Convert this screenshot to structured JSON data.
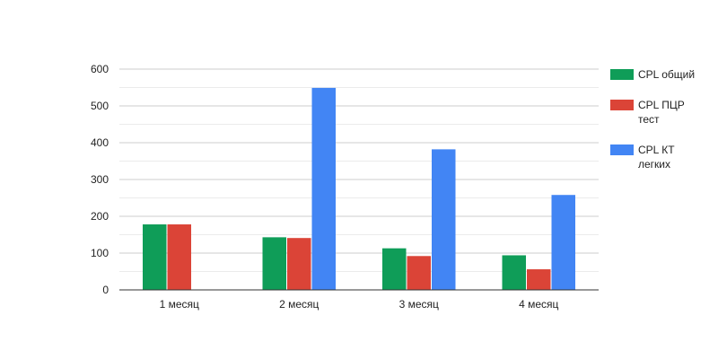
{
  "chart_data": {
    "type": "bar",
    "title": "",
    "xlabel": "",
    "ylabel": "",
    "categories": [
      "1 месяц",
      "2 месяц",
      "3 месяц",
      "4 месяц"
    ],
    "yticks": [
      "0",
      "100",
      "200",
      "300",
      "400",
      "500",
      "600"
    ],
    "ylim": [
      0,
      600
    ],
    "grid": true,
    "legend_position": "right",
    "series": [
      {
        "name": "CPL общий",
        "legend_lines": [
          "CPL общий"
        ],
        "color": "#0f9d58",
        "values": [
          178,
          143,
          113,
          94
        ]
      },
      {
        "name": "CPL ПЦР тест",
        "legend_lines": [
          "CPL ПЦР",
          "тест"
        ],
        "color": "#db4437",
        "values": [
          178,
          141,
          92,
          56
        ]
      },
      {
        "name": "CPL КТ легких",
        "legend_lines": [
          "CPL КТ",
          "легких"
        ],
        "color": "#4285f4",
        "values": [
          null,
          549,
          382,
          258
        ]
      }
    ]
  }
}
